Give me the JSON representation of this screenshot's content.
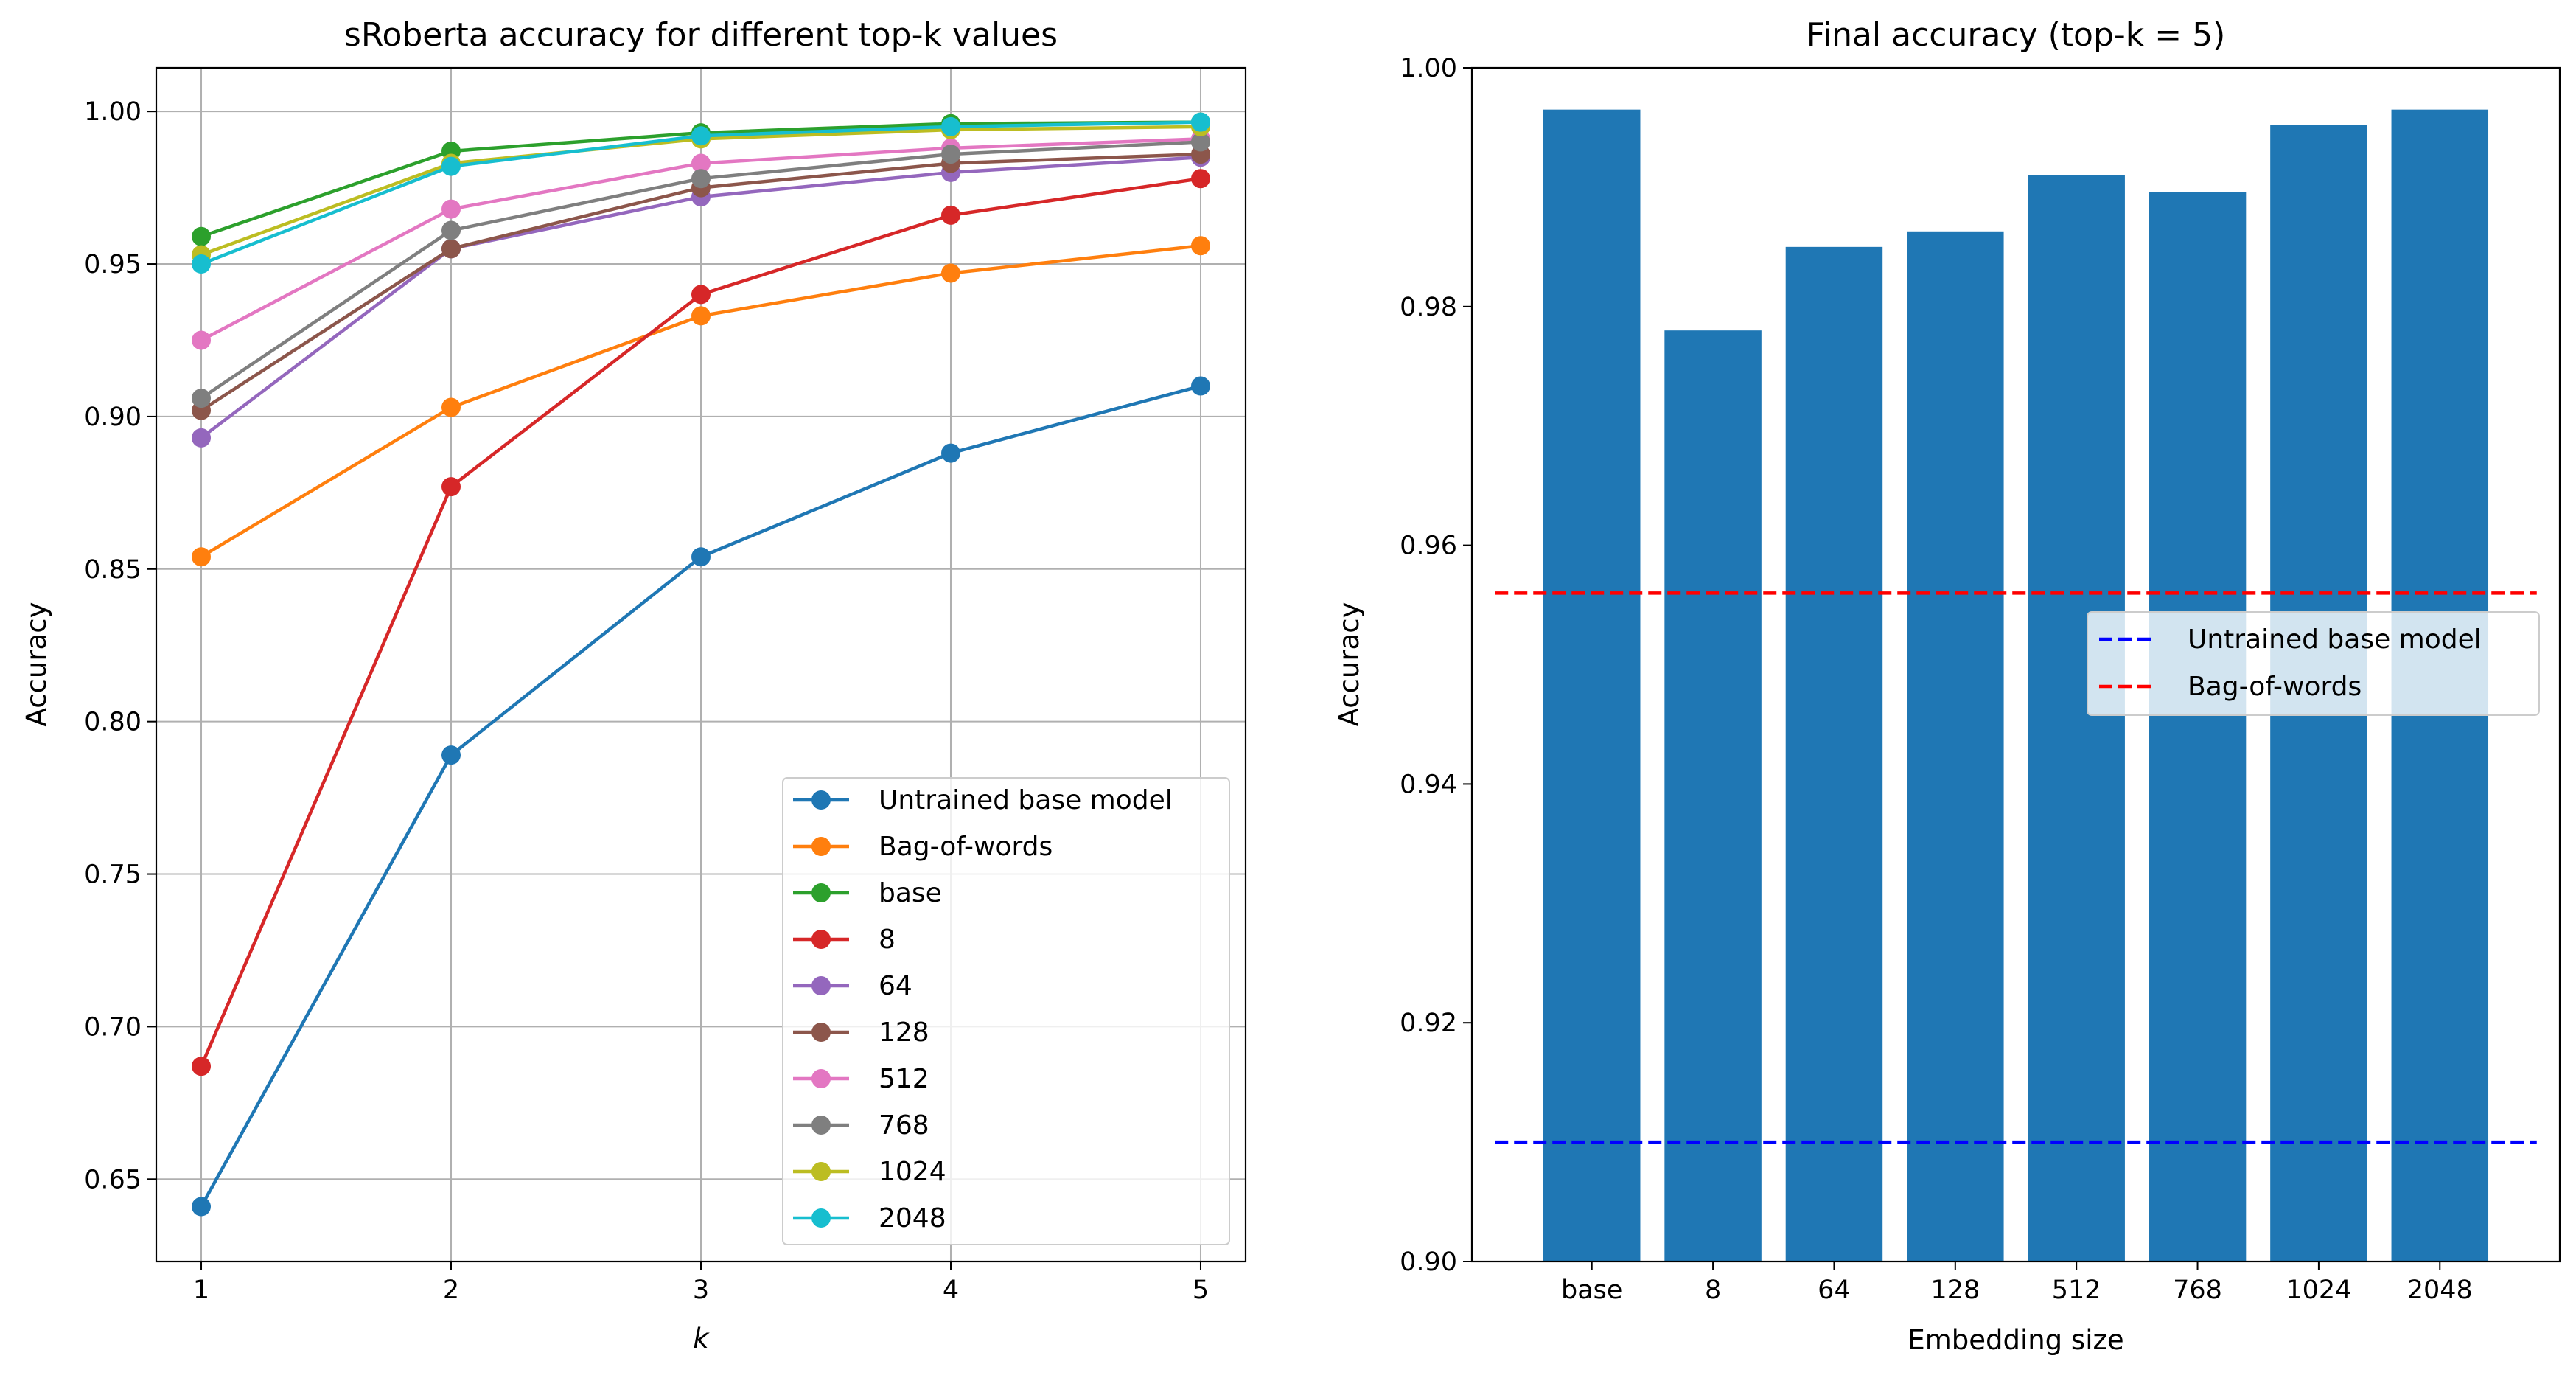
{
  "colors": {
    "tab_blue": "#1f77b4",
    "tab_orange": "#ff7f0e",
    "tab_green": "#2ca02c",
    "tab_red": "#d62728",
    "tab_purple": "#9467bd",
    "tab_brown": "#8c564b",
    "tab_pink": "#e377c2",
    "tab_gray": "#7f7f7f",
    "tab_olive": "#bcbd22",
    "tab_cyan": "#17becf",
    "grid": "#b0b0b0",
    "ref_blue": "#0000ff",
    "ref_red": "#ff0000"
  },
  "chart_data": [
    {
      "type": "line",
      "title": "sRoberta accuracy for different top-k values",
      "xlabel": "k",
      "ylabel": "Accuracy",
      "x": [
        1,
        2,
        3,
        4,
        5
      ],
      "xticks": [
        "1",
        "2",
        "3",
        "4",
        "5"
      ],
      "yticks": [
        "0.65",
        "0.70",
        "0.75",
        "0.80",
        "0.85",
        "0.90",
        "0.95",
        "1.00"
      ],
      "xlim": [
        0.82,
        5.18
      ],
      "ylim": [
        0.623,
        1.0143
      ],
      "grid": true,
      "legend_position": "lower right",
      "series": [
        {
          "name": "Untrained base model",
          "color": "#1f77b4",
          "values": [
            0.641,
            0.789,
            0.854,
            0.888,
            0.91
          ]
        },
        {
          "name": "Bag-of-words",
          "color": "#ff7f0e",
          "values": [
            0.854,
            0.903,
            0.933,
            0.947,
            0.956
          ]
        },
        {
          "name": "base",
          "color": "#2ca02c",
          "values": [
            0.959,
            0.987,
            0.993,
            0.996,
            0.9965
          ]
        },
        {
          "name": "8",
          "color": "#d62728",
          "values": [
            0.687,
            0.877,
            0.94,
            0.966,
            0.978
          ]
        },
        {
          "name": "64",
          "color": "#9467bd",
          "values": [
            0.893,
            0.955,
            0.972,
            0.98,
            0.985
          ]
        },
        {
          "name": "128",
          "color": "#8c564b",
          "values": [
            0.902,
            0.955,
            0.975,
            0.983,
            0.986
          ]
        },
        {
          "name": "512",
          "color": "#e377c2",
          "values": [
            0.925,
            0.968,
            0.983,
            0.988,
            0.991
          ]
        },
        {
          "name": "768",
          "color": "#7f7f7f",
          "values": [
            0.906,
            0.961,
            0.978,
            0.986,
            0.99
          ]
        },
        {
          "name": "1024",
          "color": "#bcbd22",
          "values": [
            0.953,
            0.983,
            0.991,
            0.994,
            0.995
          ]
        },
        {
          "name": "2048",
          "color": "#17becf",
          "values": [
            0.95,
            0.982,
            0.992,
            0.995,
            0.9965
          ]
        }
      ]
    },
    {
      "type": "bar",
      "title": "Final accuracy (top-k = 5)",
      "xlabel": "Embedding size",
      "ylabel": "Accuracy",
      "categories": [
        "base",
        "8",
        "64",
        "128",
        "512",
        "768",
        "1024",
        "2048"
      ],
      "values": [
        0.9965,
        0.978,
        0.985,
        0.9863,
        0.991,
        0.9896,
        0.9952,
        0.9965
      ],
      "bar_color": "#1f77b4",
      "yticks": [
        "0.90",
        "0.92",
        "0.94",
        "0.96",
        "0.98",
        "1.00"
      ],
      "ylim": [
        0.9,
        1.0
      ],
      "grid": false,
      "legend_position": "center right",
      "reference_lines": [
        {
          "name": "Untrained base model",
          "value": 0.91,
          "color": "#0000ff",
          "style": "dashed"
        },
        {
          "name": "Bag-of-words",
          "value": 0.956,
          "color": "#ff0000",
          "style": "dashed"
        }
      ]
    }
  ]
}
